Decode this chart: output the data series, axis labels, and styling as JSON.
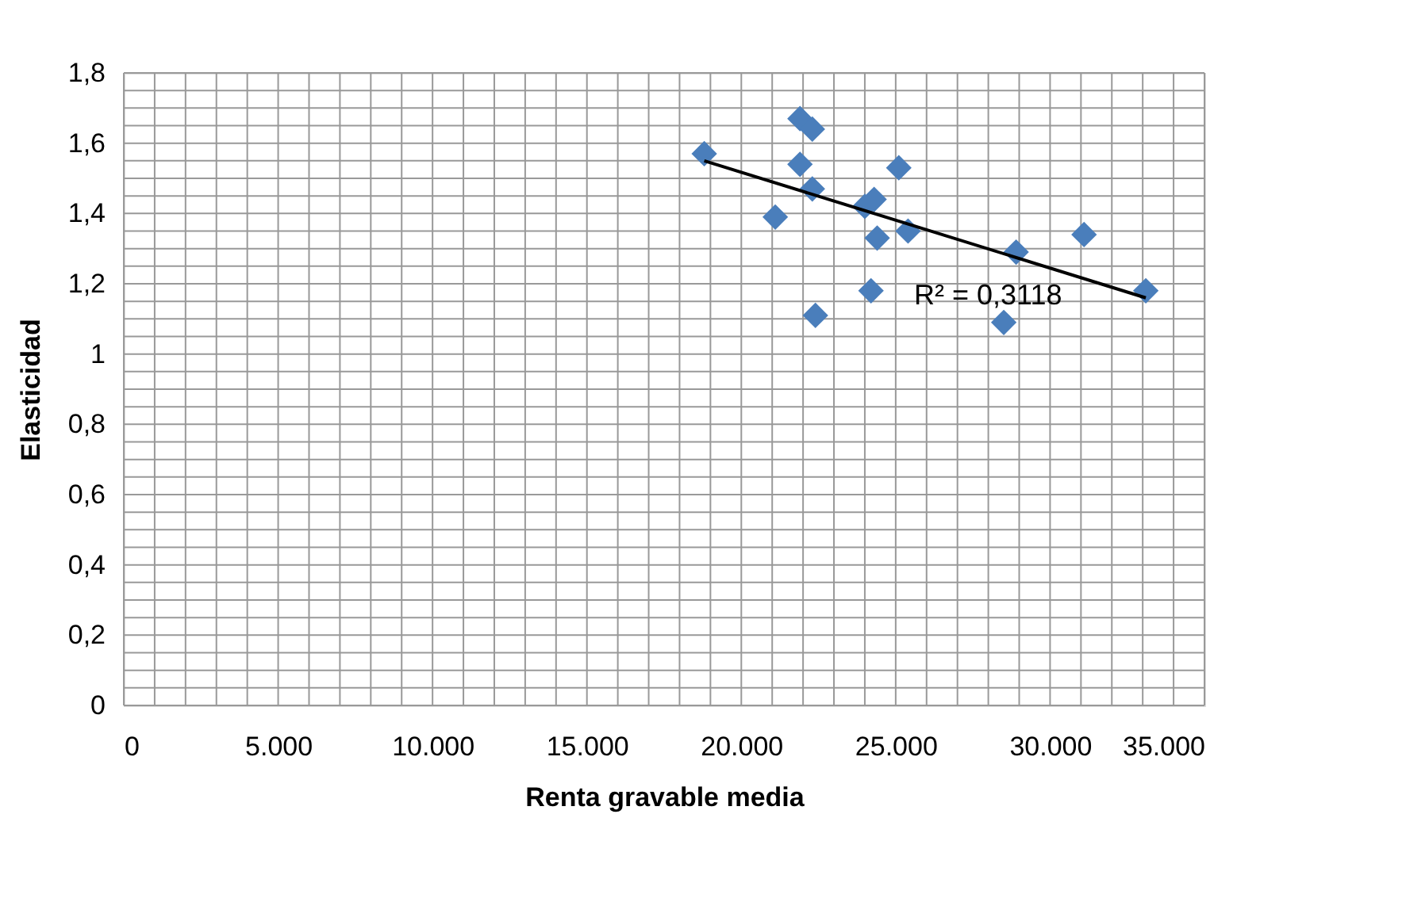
{
  "chart_data": {
    "type": "scatter",
    "xlabel": "Renta gravable media",
    "ylabel": "Elasticidad",
    "x": [
      18800,
      21900,
      22300,
      21900,
      22300,
      21100,
      24000,
      24300,
      25100,
      24400,
      25400,
      22400,
      24200,
      28900,
      28500,
      31100,
      33100
    ],
    "series": [
      {
        "color": "#4a7ebb",
        "values": [
          1.57,
          1.67,
          1.64,
          1.54,
          1.47,
          1.39,
          1.42,
          1.44,
          1.53,
          1.33,
          1.35,
          1.11,
          1.18,
          1.29,
          1.09,
          1.34,
          1.18
        ],
        "marker": "diamond"
      },
      {
        "type": "line",
        "color": "#000000",
        "x": [
          18800,
          33100
        ],
        "values": [
          1.55,
          1.16
        ],
        "marker": "none"
      }
    ],
    "annotations": [
      "R² = 0,3118"
    ],
    "xlim": [
      0,
      35000
    ],
    "ylim": [
      0,
      1.8
    ],
    "xticks": [
      {
        "value": 0,
        "label": "0"
      },
      {
        "value": 1000,
        "label": null
      },
      {
        "value": 2000,
        "label": null
      },
      {
        "value": 3000,
        "label": null
      },
      {
        "value": 4000,
        "label": null
      },
      {
        "value": 5000,
        "label": "5.000"
      },
      {
        "value": 6000,
        "label": null
      },
      {
        "value": 7000,
        "label": null
      },
      {
        "value": 8000,
        "label": null
      },
      {
        "value": 9000,
        "label": null
      },
      {
        "value": 10000,
        "label": "10.000"
      },
      {
        "value": 11000,
        "label": null
      },
      {
        "value": 12000,
        "label": null
      },
      {
        "value": 13000,
        "label": null
      },
      {
        "value": 14000,
        "label": null
      },
      {
        "value": 15000,
        "label": "15.000"
      },
      {
        "value": 16000,
        "label": null
      },
      {
        "value": 17000,
        "label": null
      },
      {
        "value": 18000,
        "label": null
      },
      {
        "value": 19000,
        "label": null
      },
      {
        "value": 20000,
        "label": "20.000"
      },
      {
        "value": 21000,
        "label": null
      },
      {
        "value": 22000,
        "label": null
      },
      {
        "value": 23000,
        "label": null
      },
      {
        "value": 24000,
        "label": null
      },
      {
        "value": 25000,
        "label": "25.000"
      },
      {
        "value": 26000,
        "label": null
      },
      {
        "value": 27000,
        "label": null
      },
      {
        "value": 28000,
        "label": null
      },
      {
        "value": 29000,
        "label": null
      },
      {
        "value": 30000,
        "label": "30.000"
      },
      {
        "value": 31000,
        "label": null
      },
      {
        "value": 32000,
        "label": null
      },
      {
        "value": 33000,
        "label": null
      },
      {
        "value": 34000,
        "label": null
      },
      {
        "value": 35000,
        "label": "35.000"
      }
    ],
    "yticks": [
      0,
      {
        "value": 0.05,
        "label": null
      },
      {
        "value": 0.1,
        "label": null
      },
      {
        "value": 0.15,
        "label": null
      },
      {
        "value": 0.2,
        "label": "0,2"
      },
      {
        "value": 0.25,
        "label": null
      },
      {
        "value": 0.3,
        "label": null
      },
      {
        "value": 0.35,
        "label": null
      },
      {
        "value": 0.4,
        "label": "0,4"
      },
      {
        "value": 0.45,
        "label": null
      },
      {
        "value": 0.5,
        "label": null
      },
      {
        "value": 0.55,
        "label": null
      },
      {
        "value": 0.6,
        "label": "0,6"
      },
      {
        "value": 0.65,
        "label": null
      },
      {
        "value": 0.7,
        "label": null
      },
      {
        "value": 0.75,
        "label": null
      },
      {
        "value": 0.8,
        "label": "0,8"
      },
      {
        "value": 0.85,
        "label": null
      },
      {
        "value": 0.9,
        "label": null
      },
      {
        "value": 0.95,
        "label": null
      },
      1,
      {
        "value": 1.05,
        "label": null
      },
      {
        "value": 1.1,
        "label": null
      },
      {
        "value": 1.15,
        "label": null
      },
      {
        "value": 1.2,
        "label": "1,2"
      },
      {
        "value": 1.25,
        "label": null
      },
      {
        "value": 1.3,
        "label": null
      },
      {
        "value": 1.35,
        "label": null
      },
      {
        "value": 1.4,
        "label": "1,4"
      },
      {
        "value": 1.45,
        "label": null
      },
      {
        "value": 1.5,
        "label": null
      },
      {
        "value": 1.55,
        "label": null
      },
      {
        "value": 1.6,
        "label": "1,6"
      },
      {
        "value": 1.65,
        "label": null
      },
      {
        "value": 1.7,
        "label": null
      },
      {
        "value": 1.75,
        "label": null
      },
      {
        "value": 1.8,
        "label": "1,8"
      }
    ],
    "grid": true
  }
}
